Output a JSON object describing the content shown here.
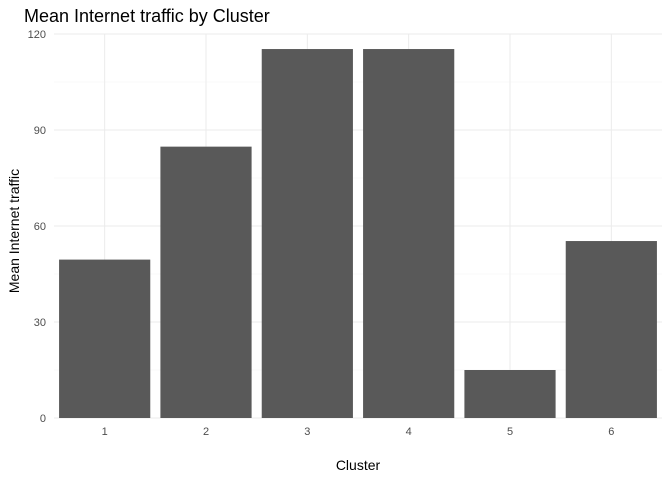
{
  "chart_data": {
    "type": "bar",
    "title": "Mean Internet traffic by Cluster",
    "xlabel": "Cluster",
    "ylabel": "Mean Internet traffic",
    "categories": [
      "1",
      "2",
      "3",
      "4",
      "5",
      "6"
    ],
    "values": [
      49.5,
      84.8,
      115.3,
      115.3,
      15.0,
      55.3
    ],
    "ylim": [
      0,
      120
    ],
    "yticks": [
      0,
      30,
      60,
      90,
      120
    ],
    "ytick_labels": [
      "0",
      "30",
      "60",
      "90",
      "120"
    ],
    "grid": true,
    "legend": "none",
    "colors": {
      "bar": "#595959",
      "grid_major": "#ebebeb",
      "grid_minor": "#f4f4f4",
      "tick_text": "#4d4d4d",
      "text": "#000000",
      "background": "#ffffff"
    }
  }
}
